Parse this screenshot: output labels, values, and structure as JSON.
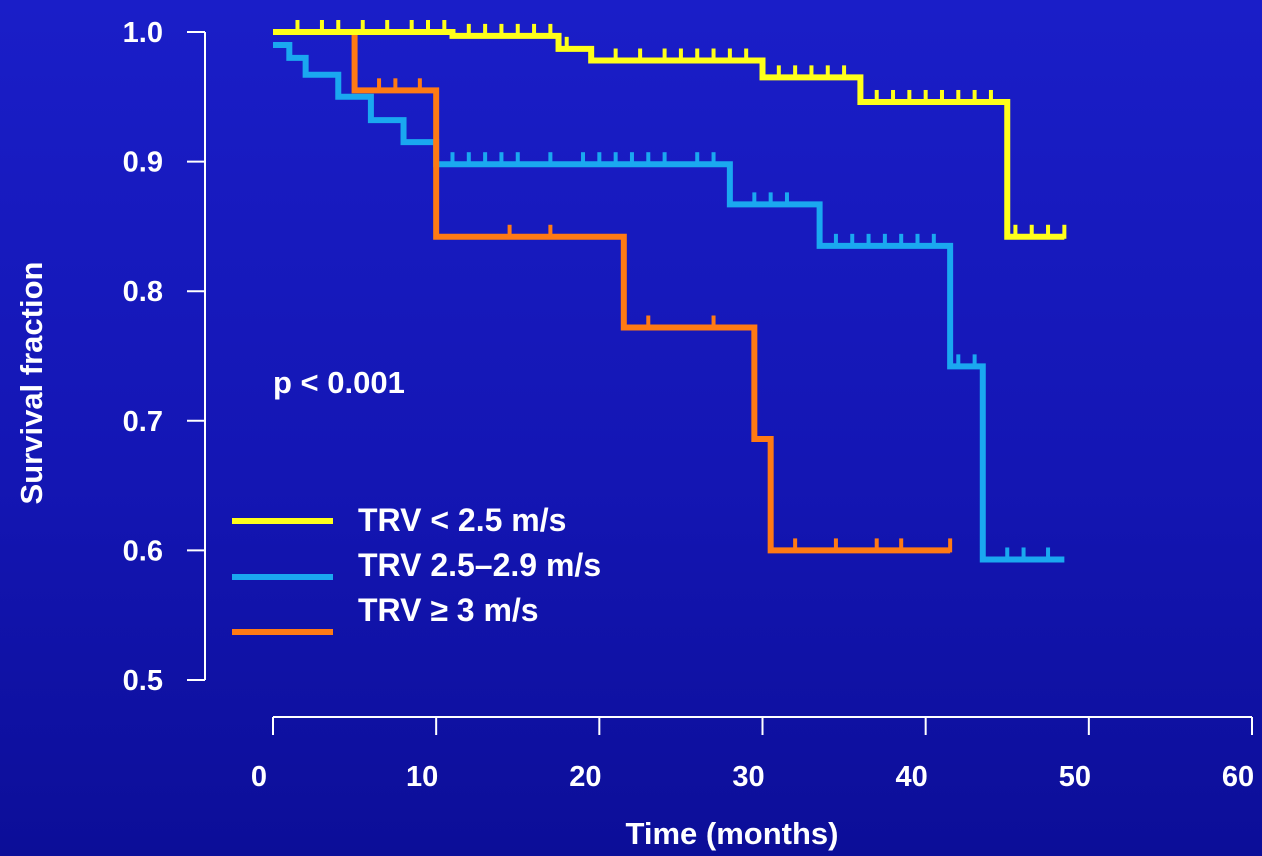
{
  "chart_data": {
    "type": "line",
    "subtype": "kaplan-meier",
    "xlabel": "Time (months)",
    "ylabel": "Survival fraction",
    "xlim": [
      0,
      60
    ],
    "ylim": [
      0.5,
      1.0
    ],
    "x_ticks": [
      "0",
      "10",
      "20",
      "30",
      "40",
      "50",
      "60"
    ],
    "y_ticks": [
      "0.5",
      "0.6",
      "0.7",
      "0.8",
      "0.9",
      "1.0"
    ],
    "annotation": "p < 0.001",
    "grid": false,
    "legend_position": "left",
    "series": [
      {
        "name": "TRV < 2.5 m/s",
        "color": "#ffff1a",
        "x": [
          0,
          11,
          17.5,
          19.5,
          30,
          36,
          44.5,
          45,
          48.5
        ],
        "y": [
          1.0,
          0.997,
          0.987,
          0.978,
          0.965,
          0.946,
          0.946,
          0.842,
          0.842
        ],
        "censored_x": [
          1.5,
          3,
          4,
          5.5,
          7,
          8.5,
          9.5,
          10.5,
          12,
          13,
          14,
          15,
          16,
          17,
          18,
          21,
          22.5,
          24,
          25,
          26,
          27,
          28,
          29,
          30,
          31,
          32,
          33,
          34,
          35,
          36,
          37,
          38,
          39,
          40,
          41,
          42,
          43,
          44,
          45.5,
          46.5,
          47.5,
          48.5
        ]
      },
      {
        "name": "TRV 2.5–2.9 m/s",
        "color": "#1aa8f0",
        "x": [
          0,
          1,
          2,
          4,
          6,
          8,
          10,
          28,
          33.5,
          41.5,
          43.5,
          48.5
        ],
        "y": [
          0.99,
          0.98,
          0.967,
          0.95,
          0.932,
          0.915,
          0.898,
          0.867,
          0.835,
          0.742,
          0.593,
          0.593
        ],
        "censored_x": [
          11,
          12,
          13,
          14,
          15,
          17,
          19,
          20,
          21,
          22,
          23,
          24,
          26,
          27,
          29.5,
          30.5,
          31.5,
          34.5,
          35.5,
          36.5,
          37.5,
          38.5,
          39.5,
          40.5,
          42,
          43,
          45,
          46,
          47.5
        ]
      },
      {
        "name": "TRV ≥ 3 m/s",
        "color": "#ff7a14",
        "x": [
          0,
          5,
          10,
          21.5,
          29.5,
          30.5,
          41.5
        ],
        "y": [
          1.0,
          0.955,
          0.842,
          0.772,
          0.686,
          0.6,
          0.6
        ],
        "censored_x": [
          6.5,
          7.5,
          9,
          14.5,
          17,
          23,
          27,
          32,
          34.5,
          37,
          38.5,
          41.5
        ]
      }
    ]
  }
}
